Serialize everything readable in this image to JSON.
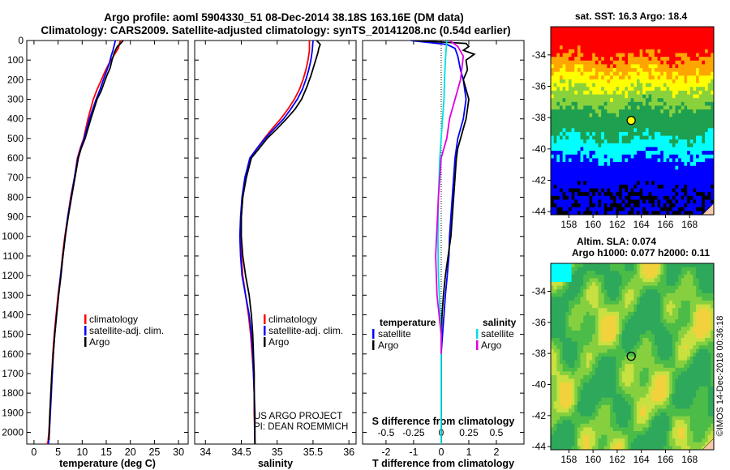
{
  "title_line1": "Argo profile: aoml 5904330_51 08-Dec-2014 38.18S 163.16E (DM data)",
  "title_line2": "Climatology: CARS2009. Satellite-adjusted climatology: synTS_20141208.nc (0.54d earlier)",
  "credit_line1": "US ARGO PROJECT",
  "credit_line2": "PI: DEAN ROEMMICH",
  "imos_stamp": "©IMOS 14-Dec-2018 00:36:18",
  "colors": {
    "climatology": "#ff0000",
    "satellite": "#0000ff",
    "argo": "#000000",
    "salinity_satellite": "#00e0e0",
    "salinity_argo": "#e000e0",
    "profile_marker": "#ffff00"
  },
  "chart_data": [
    {
      "type": "line",
      "xlabel": "temperature (deg C)",
      "xlim": [
        -1.5,
        32
      ],
      "xticks": [
        "0",
        "5",
        "10",
        "15",
        "20",
        "25",
        "30"
      ],
      "ylim": [
        0,
        2060
      ],
      "yticks": [
        "0",
        "100",
        "200",
        "300",
        "400",
        "500",
        "600",
        "700",
        "800",
        "900",
        "1000",
        "1100",
        "1200",
        "1300",
        "1400",
        "1500",
        "1600",
        "1700",
        "1800",
        "1900",
        "2000"
      ],
      "legend": [
        "climatology",
        "satellite-adj. clim.",
        "Argo"
      ],
      "series": [
        {
          "name": "climatology",
          "color": "#ff0000",
          "x": [
            18.0,
            17.8,
            17.5,
            16.5,
            15.5,
            14.7,
            14.0,
            13.1,
            12.3,
            11.2,
            10.3,
            9.6,
            9.0,
            8.4,
            7.6,
            7.0,
            6.4,
            5.9,
            5.5,
            5.0,
            4.6,
            4.2,
            3.9,
            3.7,
            3.5,
            3.3,
            3.1,
            2.9,
            2.7,
            2.6
          ],
          "y": [
            0,
            10,
            40,
            80,
            120,
            160,
            200,
            250,
            300,
            400,
            500,
            550,
            600,
            700,
            800,
            900,
            1000,
            1100,
            1200,
            1300,
            1400,
            1500,
            1600,
            1700,
            1800,
            1900,
            2000,
            2050,
            2060,
            2060
          ]
        },
        {
          "name": "satellite-adj. clim.",
          "color": "#0000ff",
          "x": [
            16.9,
            16.7,
            16.4,
            16.0,
            15.6,
            15.0,
            14.4,
            13.7,
            12.9,
            11.5,
            10.4,
            9.7,
            9.1,
            8.4,
            7.7,
            7.0,
            6.5,
            6.0,
            5.5,
            5.1,
            4.7,
            4.3,
            4.0,
            3.8,
            3.6,
            3.4,
            3.2,
            3.0
          ],
          "y": [
            0,
            20,
            50,
            80,
            120,
            160,
            200,
            250,
            300,
            400,
            500,
            550,
            600,
            700,
            800,
            900,
            1000,
            1100,
            1200,
            1300,
            1400,
            1500,
            1600,
            1700,
            1800,
            1900,
            2000,
            2060
          ]
        },
        {
          "name": "Argo",
          "color": "#000000",
          "x": [
            18.5,
            18.0,
            17.3,
            16.7,
            16.2,
            15.8,
            15.1,
            14.5,
            13.9,
            13.1,
            11.8,
            10.6,
            9.8,
            9.2,
            8.5,
            7.8,
            7.1,
            6.5,
            6.0,
            5.6,
            5.1,
            4.7,
            4.3,
            4.0,
            3.7,
            3.5,
            3.3,
            3.1
          ],
          "y": [
            0,
            15,
            30,
            60,
            100,
            140,
            180,
            220,
            260,
            300,
            400,
            500,
            550,
            600,
            700,
            800,
            900,
            1000,
            1100,
            1200,
            1300,
            1400,
            1500,
            1600,
            1700,
            1800,
            1900,
            2040
          ]
        }
      ]
    },
    {
      "type": "line",
      "xlabel": "salinity",
      "xlim": [
        33.85,
        36.1
      ],
      "xticks": [
        "34",
        "34.5",
        "35",
        "35.5",
        "36"
      ],
      "ylim": [
        0,
        2060
      ],
      "legend": [
        "climatology",
        "satellite-adj. clim.",
        "Argo"
      ],
      "series": [
        {
          "name": "climatology",
          "color": "#ff0000",
          "x": [
            35.45,
            35.45,
            35.43,
            35.4,
            35.36,
            35.31,
            35.24,
            35.15,
            35.05,
            34.93,
            34.82,
            34.72,
            34.62,
            34.56,
            34.52,
            34.5,
            34.49,
            34.5,
            34.52,
            34.56,
            34.6,
            34.63,
            34.65,
            34.67,
            34.68,
            34.68,
            34.69
          ],
          "y": [
            0,
            50,
            100,
            150,
            200,
            250,
            300,
            350,
            400,
            450,
            500,
            550,
            600,
            700,
            800,
            900,
            1000,
            1100,
            1200,
            1300,
            1400,
            1500,
            1600,
            1700,
            1800,
            1900,
            2060
          ]
        },
        {
          "name": "satellite-adj. clim.",
          "color": "#0000ff",
          "x": [
            35.5,
            35.49,
            35.47,
            35.44,
            35.4,
            35.35,
            35.28,
            35.19,
            35.09,
            34.96,
            34.83,
            34.72,
            34.62,
            34.55,
            34.51,
            34.49,
            34.48,
            34.49,
            34.51,
            34.56,
            34.61,
            34.64,
            34.66,
            34.67,
            34.68,
            34.69,
            34.69
          ],
          "y": [
            0,
            50,
            100,
            150,
            200,
            250,
            300,
            350,
            400,
            450,
            500,
            550,
            600,
            700,
            800,
            900,
            1000,
            1100,
            1200,
            1300,
            1400,
            1500,
            1600,
            1700,
            1800,
            1900,
            2060
          ]
        },
        {
          "name": "Argo",
          "color": "#000000",
          "x": [
            35.55,
            35.6,
            35.58,
            35.57,
            35.52,
            35.47,
            35.41,
            35.34,
            35.25,
            35.13,
            35.0,
            34.86,
            34.75,
            34.64,
            34.57,
            34.52,
            34.5,
            34.5,
            34.52,
            34.56,
            34.61,
            34.64,
            34.66,
            34.67,
            34.68,
            34.68,
            34.69
          ],
          "y": [
            0,
            20,
            40,
            60,
            120,
            180,
            240,
            300,
            350,
            400,
            450,
            500,
            550,
            600,
            700,
            800,
            900,
            1000,
            1100,
            1200,
            1300,
            1400,
            1500,
            1600,
            1700,
            1800,
            2060
          ]
        }
      ]
    },
    {
      "type": "line",
      "xlabel": "T difference from climatology",
      "xlabel_top": "S difference from climatology",
      "xlim": [
        -2.85,
        3.0
      ],
      "xticks": [
        "-2",
        "-1",
        "0",
        "1",
        "2"
      ],
      "xticks_top": [
        {
          "label": "-0.5",
          "t": -2.0
        },
        {
          "label": "-0.25",
          "t": -1.0
        },
        {
          "label": "0",
          "t": 0.0
        },
        {
          "label": "0.25",
          "t": 1.0
        },
        {
          "label": "0.5",
          "t": 2.0
        }
      ],
      "ylim": [
        0,
        2060
      ],
      "legend_left_title": "temperature",
      "legend_right_title": "salinity",
      "legend_labels": [
        "satellite",
        "Argo"
      ],
      "series": [
        {
          "name": "temperature satellite",
          "color": "#0000ff",
          "x": [
            -1.1,
            0.2,
            0.5,
            0.6,
            0.7,
            0.8,
            0.9,
            0.8,
            0.6,
            0.5,
            0.45,
            0.4,
            0.35,
            0.3,
            0.28,
            0.22,
            0.15,
            0.1,
            0.05,
            0.0,
            0.0
          ],
          "y": [
            0,
            20,
            40,
            80,
            150,
            200,
            300,
            400,
            500,
            600,
            700,
            800,
            900,
            1000,
            1100,
            1200,
            1300,
            1400,
            1500,
            1600,
            2060
          ]
        },
        {
          "name": "temperature Argo",
          "color": "#000000",
          "x": [
            -1.0,
            0.9,
            1.0,
            0.8,
            1.2,
            0.9,
            0.95,
            0.8,
            1.0,
            0.9,
            0.8,
            0.7,
            0.6,
            0.55,
            0.5,
            0.45,
            0.4,
            0.35,
            0.25,
            0.15,
            0.08,
            0.03,
            0.0,
            0.0
          ],
          "y": [
            0,
            15,
            30,
            50,
            70,
            100,
            150,
            200,
            300,
            400,
            450,
            500,
            550,
            600,
            700,
            800,
            900,
            1000,
            1100,
            1200,
            1300,
            1400,
            1500,
            2060
          ]
        },
        {
          "name": "salinity satellite",
          "color": "#00e0e0",
          "x": [
            0.2,
            0.15,
            0.12,
            0.1,
            0.05,
            0.0,
            -0.05,
            -0.1,
            -0.12,
            -0.1,
            0.0,
            0.0
          ],
          "y": [
            0,
            100,
            200,
            300,
            400,
            500,
            600,
            800,
            1000,
            1200,
            1500,
            2060
          ]
        },
        {
          "name": "salinity Argo",
          "color": "#e000e0",
          "x": [
            0.3,
            0.6,
            0.8,
            0.7,
            0.5,
            0.3,
            0.2,
            0.0,
            -0.1,
            -0.2,
            -0.15,
            0.0,
            0.0
          ],
          "y": [
            0,
            30,
            80,
            200,
            300,
            400,
            500,
            600,
            800,
            1100,
            1300,
            1500,
            1600
          ]
        }
      ]
    },
    {
      "type": "heatmap",
      "title": "sat. SST: 16.3  Argo: 18.4",
      "xticks": [
        "158",
        "160",
        "162",
        "164",
        "166",
        "168"
      ],
      "yticks": [
        "-34",
        "-36",
        "-38",
        "-40",
        "-42",
        "-44"
      ],
      "xlim": [
        156.5,
        170
      ],
      "ylim": [
        -44.2,
        -32.2
      ],
      "profile_location": {
        "lon": 163.16,
        "lat": -38.18
      }
    },
    {
      "type": "heatmap",
      "title": "Altim. SLA: 0.074",
      "subtitle": "Argo h1000: 0.077  h2000: 0.11",
      "xticks": [
        "158",
        "160",
        "162",
        "164",
        "166",
        "168"
      ],
      "yticks": [
        "-34",
        "-36",
        "-38",
        "-40",
        "-42",
        "-44"
      ],
      "xlim": [
        156.5,
        170
      ],
      "ylim": [
        -44.2,
        -32.2
      ],
      "profile_location": {
        "lon": 163.16,
        "lat": -38.18
      }
    }
  ]
}
